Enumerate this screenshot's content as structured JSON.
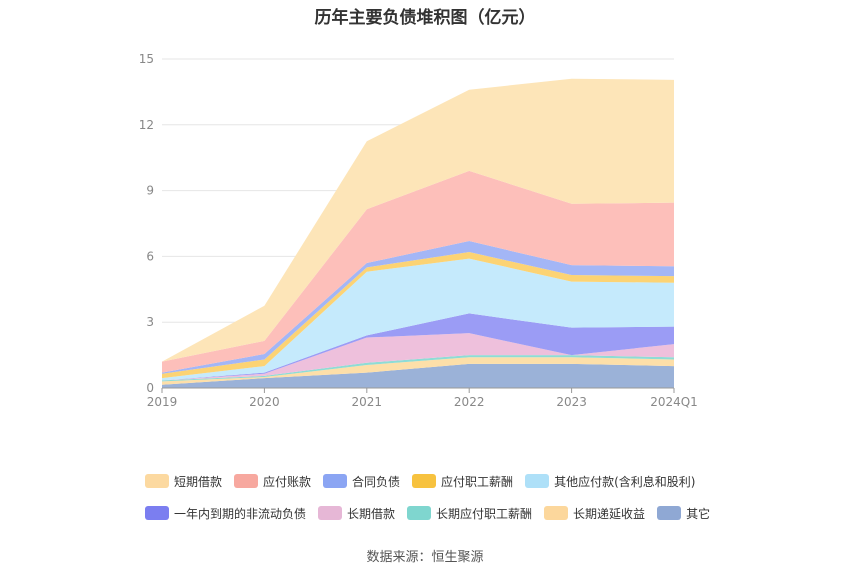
{
  "chart_data": {
    "type": "area",
    "stacked": true,
    "title": "历年主要负债堆积图（亿元）",
    "categories": [
      "2019",
      "2020",
      "2021",
      "2022",
      "2023",
      "2024Q1"
    ],
    "ylim": [
      0,
      15
    ],
    "yticks": [
      0,
      3,
      6,
      9,
      12,
      15
    ],
    "grid": true,
    "series": [
      {
        "name": "其它",
        "color": "#9bb2d8",
        "values": [
          0.15,
          0.45,
          0.7,
          1.1,
          1.1,
          1.0
        ]
      },
      {
        "name": "长期递延收益",
        "color": "#fddfa9",
        "values": [
          0.15,
          0.05,
          0.35,
          0.3,
          0.3,
          0.3
        ]
      },
      {
        "name": "长期应付职工薪酬",
        "color": "#8edcd5",
        "values": [
          0.05,
          0.05,
          0.1,
          0.1,
          0.1,
          0.1
        ]
      },
      {
        "name": "长期借款",
        "color": "#eec0dc",
        "values": [
          0.0,
          0.1,
          1.15,
          1.0,
          0.0,
          0.6
        ]
      },
      {
        "name": "一年内到期的非流动负债",
        "color": "#9b9cf5",
        "values": [
          0.0,
          0.05,
          0.1,
          0.9,
          1.25,
          0.8
        ]
      },
      {
        "name": "其他应付款(含利息和股利)",
        "color": "#c5eafc",
        "values": [
          0.1,
          0.3,
          2.9,
          2.5,
          2.1,
          2.0
        ]
      },
      {
        "name": "应付职工薪酬",
        "color": "#fcd374",
        "values": [
          0.2,
          0.3,
          0.2,
          0.3,
          0.3,
          0.3
        ]
      },
      {
        "name": "合同负债",
        "color": "#a3b6f6",
        "values": [
          0.05,
          0.25,
          0.2,
          0.5,
          0.45,
          0.45
        ]
      },
      {
        "name": "应付账款",
        "color": "#fdbfba",
        "values": [
          0.5,
          0.6,
          2.45,
          3.2,
          2.8,
          2.9
        ]
      },
      {
        "name": "短期借款",
        "color": "#fde5b8",
        "values": [
          0.0,
          1.6,
          3.1,
          3.7,
          5.7,
          5.6
        ]
      }
    ],
    "legend_position": "bottom"
  },
  "legend": {
    "row1": [
      {
        "label": "短期借款",
        "color": "#fcd9a0"
      },
      {
        "label": "应付账款",
        "color": "#f7a89f"
      },
      {
        "label": "合同负债",
        "color": "#8ba5f3"
      },
      {
        "label": "应付职工薪酬",
        "color": "#f7c23f"
      },
      {
        "label": "其他应付款(含利息和股利)",
        "color": "#aee0f8"
      }
    ],
    "row2": [
      {
        "label": "一年内到期的非流动负债",
        "color": "#7b7ef0"
      },
      {
        "label": "长期借款",
        "color": "#e6b7d6"
      },
      {
        "label": "长期应付职工薪酬",
        "color": "#7fd6cf"
      },
      {
        "label": "长期递延收益",
        "color": "#fcd79c"
      },
      {
        "label": "其它",
        "color": "#8fa8d4"
      }
    ]
  },
  "source": "数据来源：恒生聚源"
}
